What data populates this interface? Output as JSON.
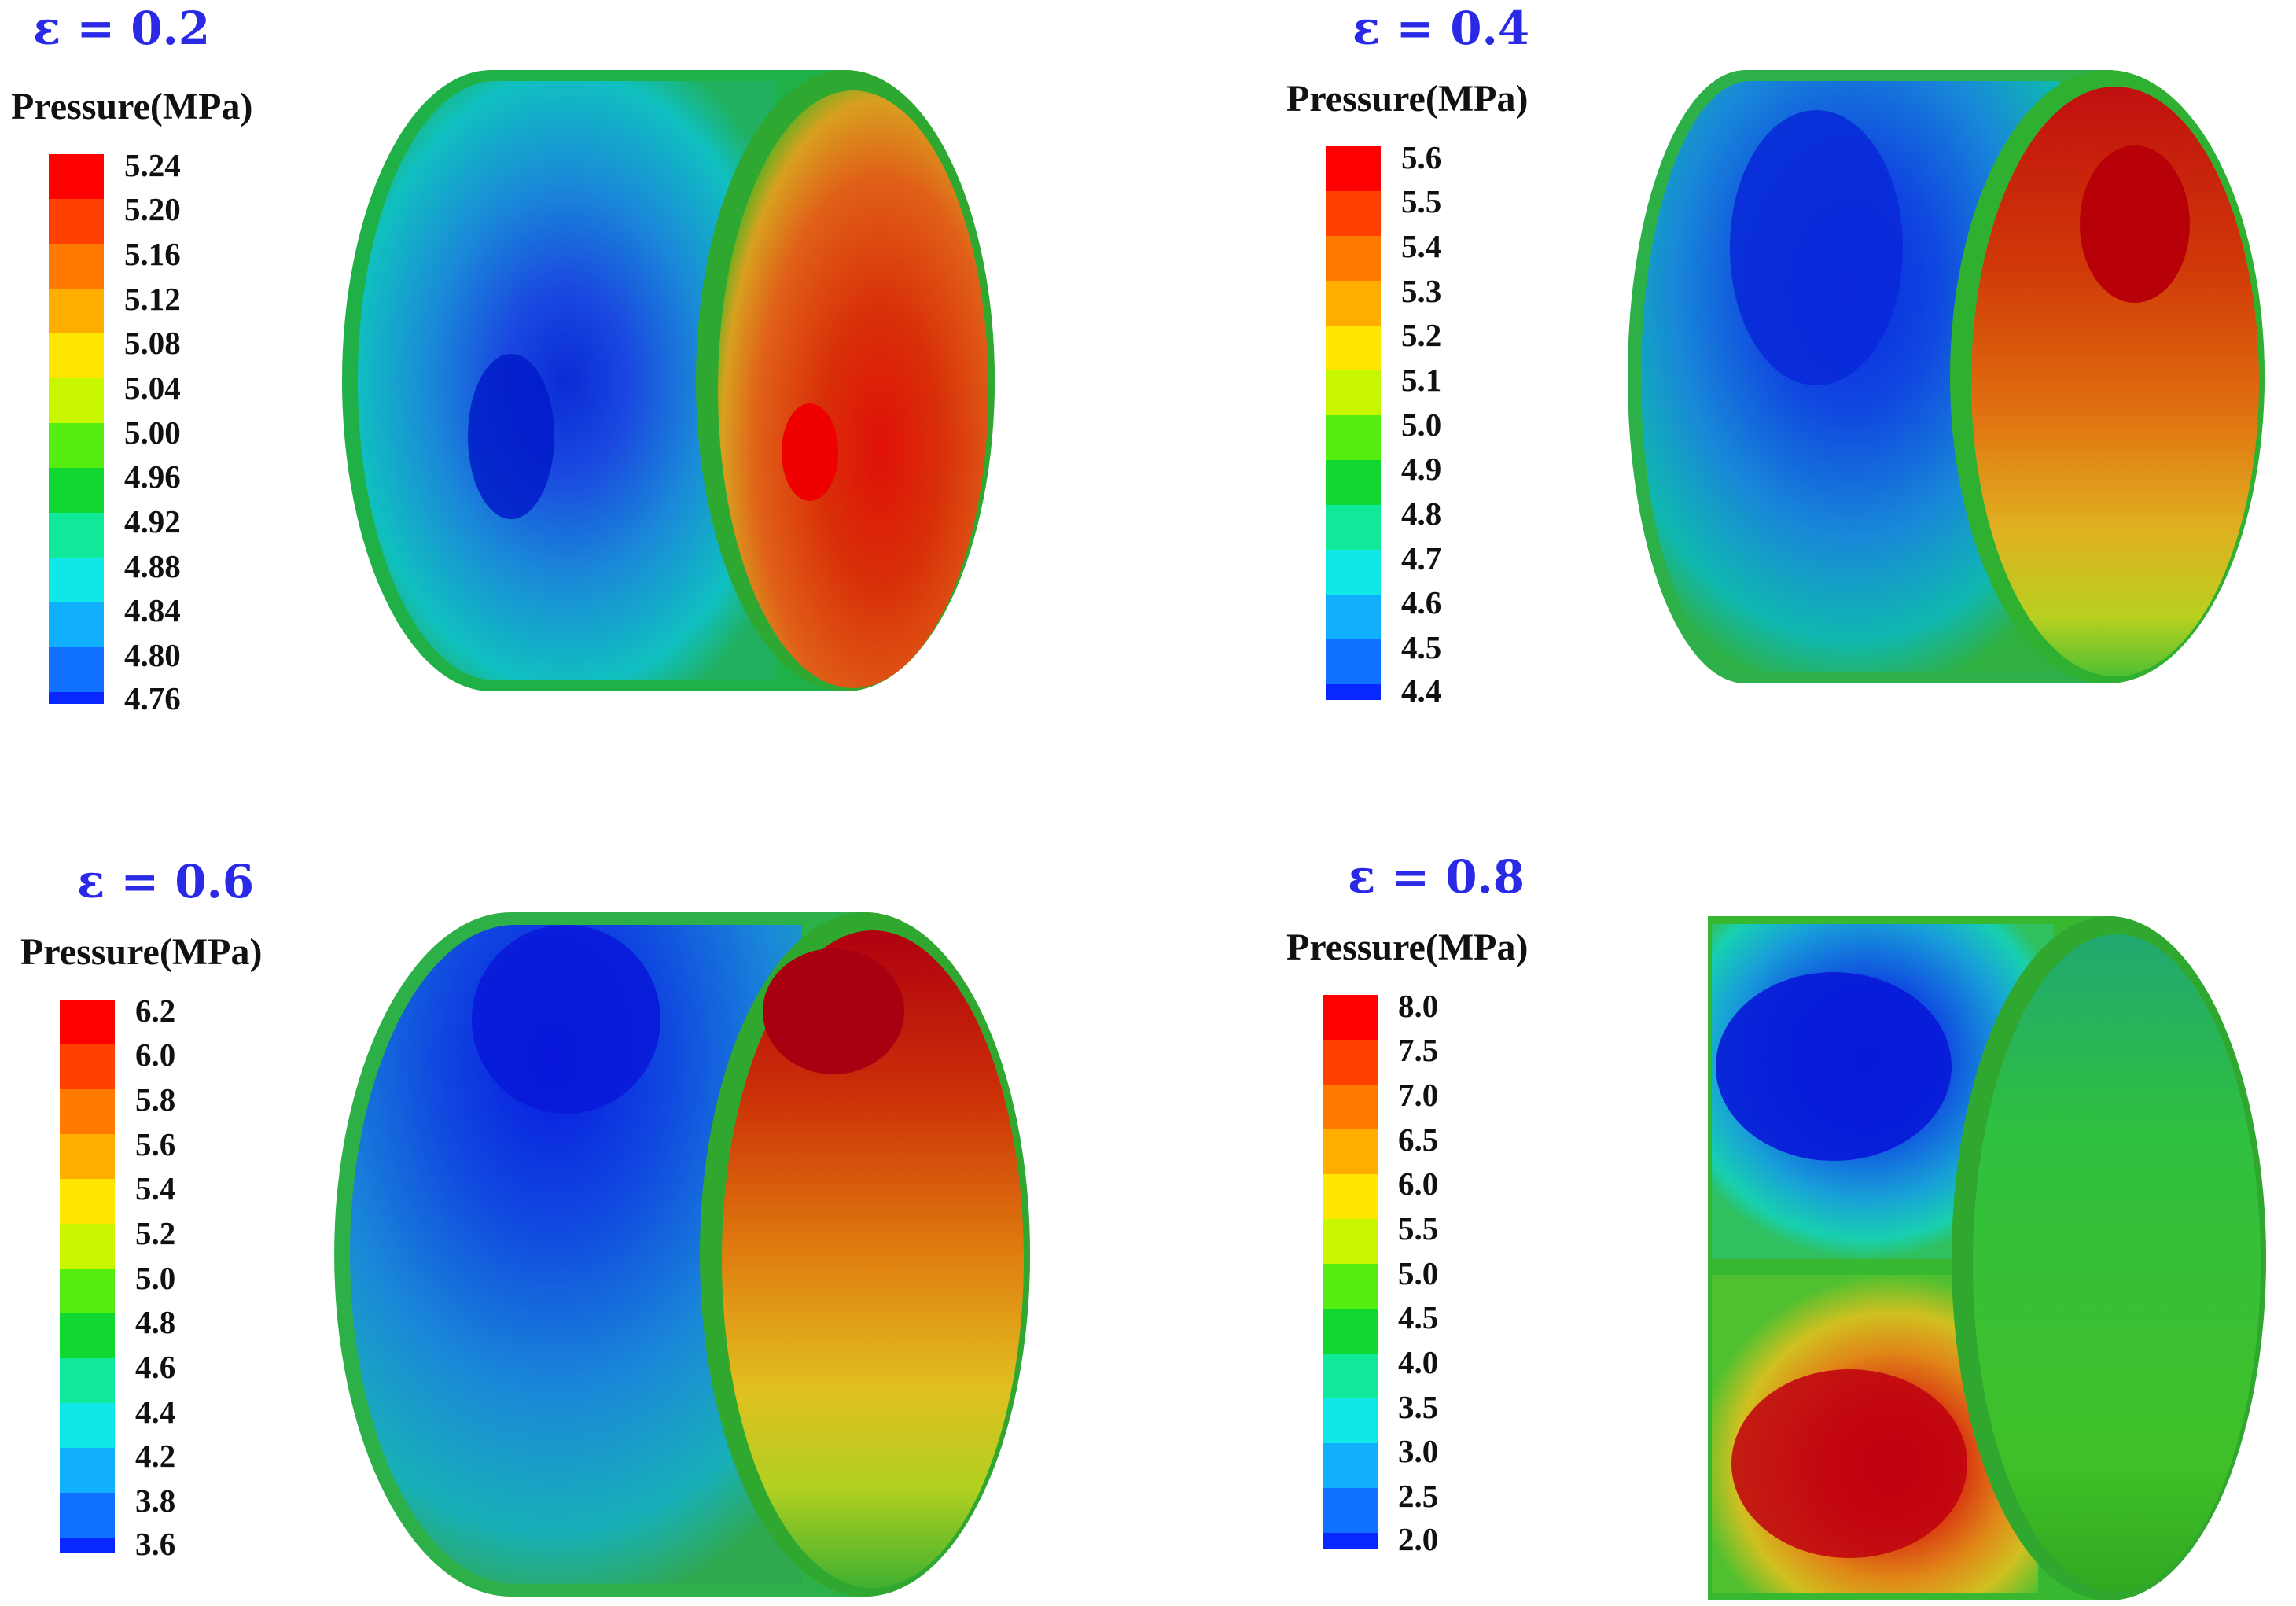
{
  "panels": [
    {
      "epsilon_label": "ε = 0.2",
      "legend_title": "Pressure(MPa)",
      "ticks": [
        "5.24",
        "5.20",
        "5.16",
        "5.12",
        "5.08",
        "5.04",
        "5.00",
        "4.96",
        "4.92",
        "4.88",
        "4.84",
        "4.80",
        "4.76"
      ]
    },
    {
      "epsilon_label": "ε = 0.4",
      "legend_title": "Pressure(MPa)",
      "ticks": [
        "5.6",
        "5.5",
        "5.4",
        "5.3",
        "5.2",
        "5.1",
        "5.0",
        "4.9",
        "4.8",
        "4.7",
        "4.6",
        "4.5",
        "4.4"
      ]
    },
    {
      "epsilon_label": "ε = 0.6",
      "legend_title": "Pressure(MPa)",
      "ticks": [
        "6.2",
        "6.0",
        "5.8",
        "5.6",
        "5.4",
        "5.2",
        "5.0",
        "4.8",
        "4.6",
        "4.4",
        "4.2",
        "3.8",
        "3.6"
      ]
    },
    {
      "epsilon_label": "ε = 0.8",
      "legend_title": "Pressure(MPa)",
      "ticks": [
        "8.0",
        "7.5",
        "7.0",
        "6.5",
        "6.0",
        "5.5",
        "5.0",
        "4.5",
        "4.0",
        "3.5",
        "3.0",
        "2.5",
        "2.0"
      ]
    }
  ],
  "colormap": [
    "#ff0000",
    "#ff4000",
    "#ff7a00",
    "#ffae00",
    "#ffe600",
    "#c8f500",
    "#55ee10",
    "#10d830",
    "#10e89a",
    "#10e8e8",
    "#10b0ff",
    "#1070ff",
    "#0828ff"
  ]
}
